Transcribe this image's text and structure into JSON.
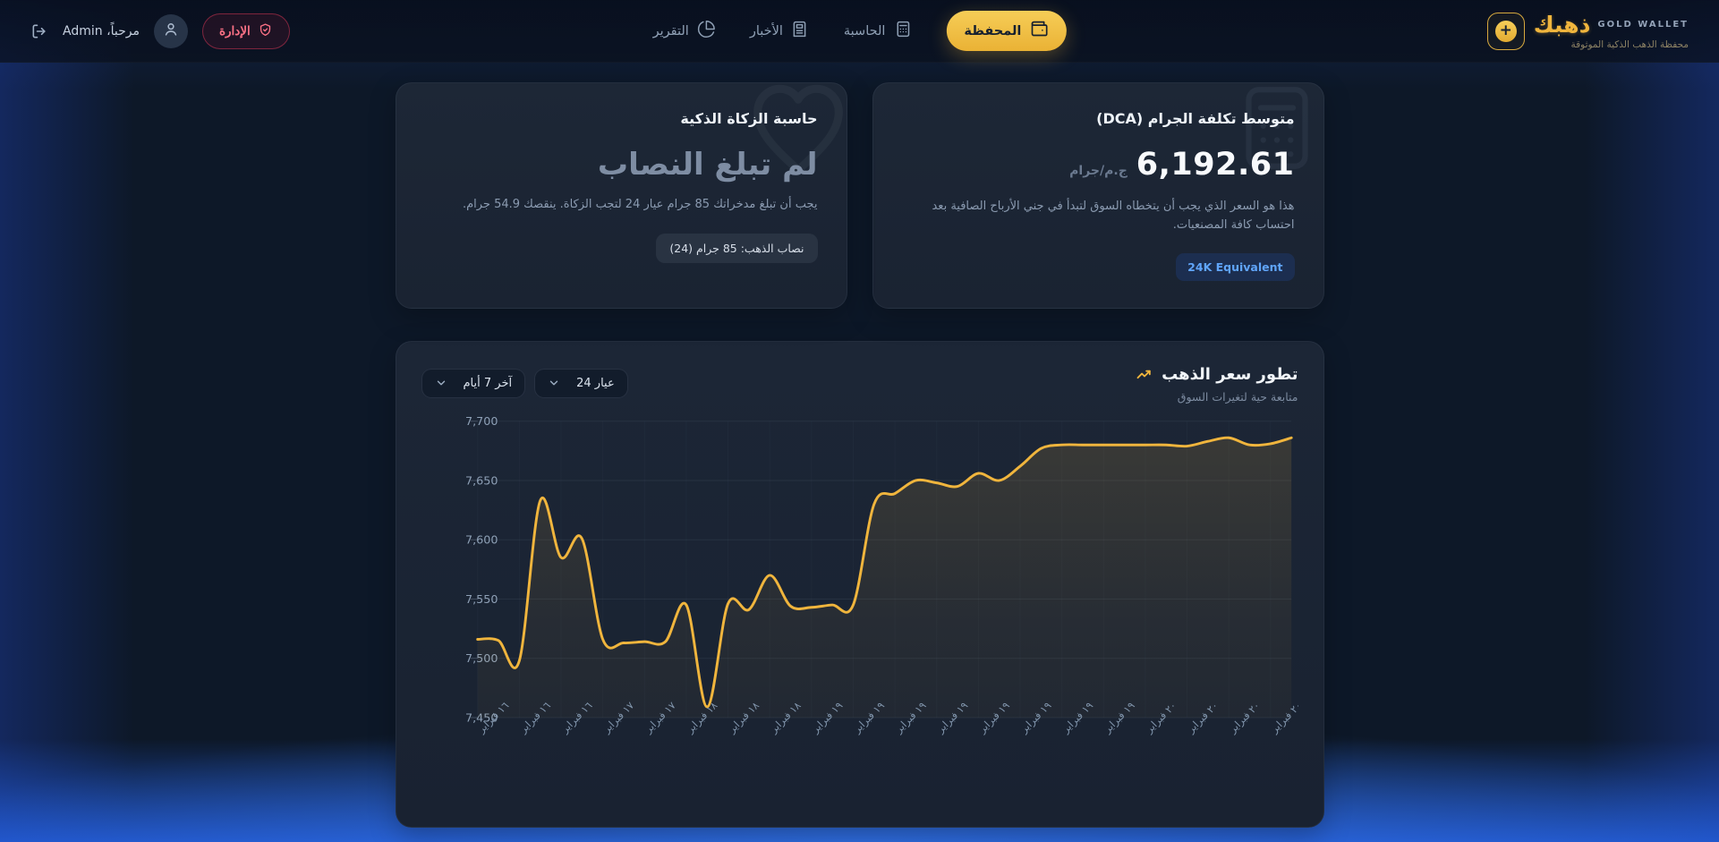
{
  "brand": {
    "name": "ذهبك",
    "tag": "GOLD WALLET",
    "subtitle": "محفظة الذهب الذكية الموثوقة",
    "coin_glyph": "+"
  },
  "topbar": {
    "greeting": "مرحباً، Admin",
    "admin_button": "الإدارة"
  },
  "nav": {
    "items": [
      {
        "label": "المحفظة",
        "icon": "wallet-icon",
        "active": true
      },
      {
        "label": "الحاسبة",
        "icon": "calculator-icon",
        "active": false
      },
      {
        "label": "الأخبار",
        "icon": "news-icon",
        "active": false
      },
      {
        "label": "التقرير",
        "icon": "report-icon",
        "active": false
      }
    ]
  },
  "dca_card": {
    "title": "متوسط تكلفة الجرام (DCA)",
    "value": "6,192.61",
    "unit": "ج.م/جرام",
    "description": "هذا هو السعر الذي يجب أن يتخطاه السوق لتبدأ في جني الأرباح الصافية بعد احتساب كافة المصنعيات.",
    "badge": "24K Equivalent"
  },
  "zakat_card": {
    "title": "حاسبة الزكاة الذكية",
    "status": "لم تبلغ النصاب",
    "description": "يجب أن تبلغ مدخراتك 85 جرام عيار 24 لتجب الزكاة. ينقصك 54.9 جرام.",
    "chip": "نصاب الذهب: 85 جرام (24)"
  },
  "chart_card": {
    "title": "تطور سعر الذهب",
    "subtitle": "متابعة حية لتغيرات السوق",
    "karat_filter": "عيار 24",
    "range_filter": "آخر 7 أيام"
  },
  "chart_data": {
    "type": "area",
    "title": "تطور سعر الذهب",
    "xlabel": "",
    "ylabel": "",
    "ylim": [
      7450,
      7700
    ],
    "y_ticks": [
      7450,
      7500,
      7550,
      7600,
      7650,
      7700
    ],
    "grid": true,
    "legend": false,
    "line_color": "#f0b53d",
    "x_labels": [
      "١٦ فبراير",
      "١٦ فبراير",
      "١٦ فبراير",
      "١٧ فبراير",
      "١٧ فبراير",
      "١٨ فبراير",
      "١٨ فبراير",
      "١٨ فبراير",
      "١٩ فبراير",
      "١٩ فبراير",
      "١٩ فبراير",
      "١٩ فبراير",
      "١٩ فبراير",
      "١٩ فبراير",
      "١٩ فبراير",
      "١٩ فبراير",
      "٢٠ فبراير",
      "٢٠ فبراير",
      "٢٠ فبراير",
      "٢٠ فبراير"
    ],
    "values": [
      7516,
      7515,
      7498,
      7633,
      7585,
      7601,
      7516,
      7513,
      7514,
      7514,
      7545,
      7459,
      7546,
      7541,
      7570,
      7544,
      7543,
      7545,
      7545,
      7630,
      7639,
      7650,
      7648,
      7645,
      7656,
      7650,
      7662,
      7677,
      7680,
      7680,
      7680,
      7680,
      7680,
      7680,
      7679,
      7683,
      7686,
      7680,
      7681,
      7686
    ]
  },
  "colors": {
    "gold": "#f0b53d",
    "badge_blue": "#60a5fa",
    "danger": "#fb7185",
    "grid_line": "rgba(148,163,184,0.10)",
    "axis_text": "#8ea0b6"
  }
}
